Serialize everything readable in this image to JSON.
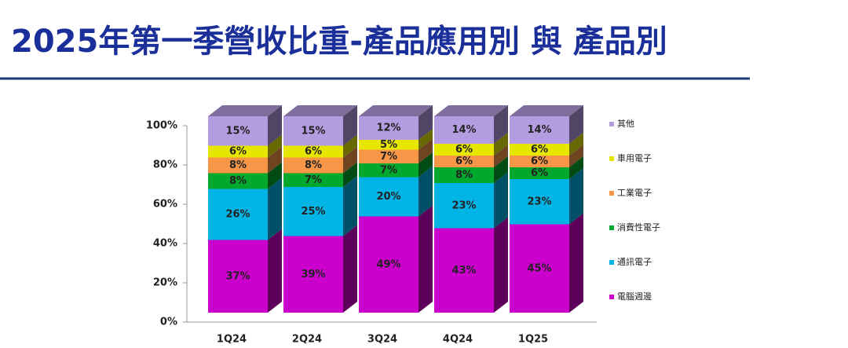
{
  "chart_data": {
    "type": "bar3d_stacked",
    "title": "2025年第一季營收比重-產品應用別 與 產品別",
    "categories": [
      "1Q24",
      "2Q24",
      "3Q24",
      "4Q24",
      "1Q25"
    ],
    "series": [
      {
        "name": "電腦週邊",
        "color": "#cc00cc",
        "values": [
          37,
          39,
          49,
          43,
          45
        ],
        "value_labels": [
          "37%",
          "39%",
          "49%",
          "43%",
          "45%"
        ]
      },
      {
        "name": "通訊電子",
        "color": "#00b4e6",
        "values": [
          26,
          25,
          20,
          23,
          23
        ],
        "value_labels": [
          "26%",
          "25%",
          "20%",
          "23%",
          "23%"
        ]
      },
      {
        "name": "消費性電子",
        "color": "#00a82d",
        "values": [
          8,
          7,
          7,
          8,
          6
        ],
        "value_labels": [
          "8%",
          "7%",
          "7%",
          "8%",
          "6%"
        ]
      },
      {
        "name": "工業電子",
        "color": "#f79646",
        "values": [
          8,
          8,
          7,
          6,
          6
        ],
        "value_labels": [
          "8%",
          "8%",
          "7%",
          "6%",
          "6%"
        ]
      },
      {
        "name": "車用電子",
        "color": "#e6e600",
        "values": [
          6,
          6,
          5,
          6,
          6
        ],
        "value_labels": [
          "6%",
          "6%",
          "5%",
          "6%",
          "6%"
        ]
      },
      {
        "name": "其他",
        "color": "#b49ce0",
        "values": [
          15,
          15,
          12,
          14,
          14
        ],
        "value_labels": [
          "15%",
          "15%",
          "12%",
          "14%",
          "14%"
        ]
      }
    ],
    "ylim": [
      0,
      100
    ],
    "yticks": [
      {
        "value": 0,
        "label": "0%"
      },
      {
        "value": 20,
        "label": "20%"
      },
      {
        "value": 40,
        "label": "40%"
      },
      {
        "value": 60,
        "label": "60%"
      },
      {
        "value": 80,
        "label": "80%"
      },
      {
        "value": 100,
        "label": "100%"
      }
    ],
    "legend": "right"
  }
}
